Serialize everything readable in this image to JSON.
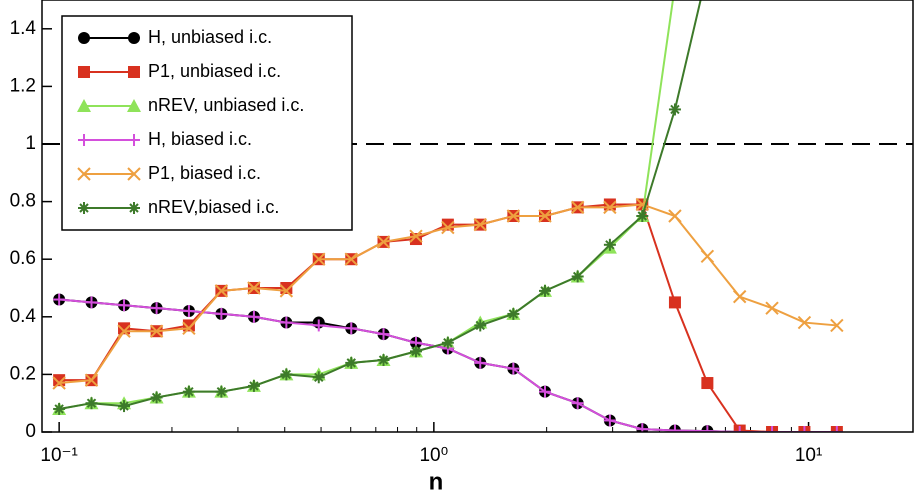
{
  "chart_data": {
    "type": "line",
    "xlabel": "n",
    "xscale": "log",
    "xlim": [
      0.09,
      19
    ],
    "ylim": [
      0,
      1.5
    ],
    "xticks": [
      {
        "value": 0.1,
        "label": "10⁻¹"
      },
      {
        "value": 1,
        "label": "10⁰"
      },
      {
        "value": 10,
        "label": "10¹"
      }
    ],
    "yticks": [
      0,
      0.2,
      0.4,
      0.6,
      0.8,
      1,
      1.2,
      1.4
    ],
    "reference_line": 1,
    "legend": "upper left",
    "x": [
      0.1,
      0.122,
      0.149,
      0.182,
      0.222,
      0.271,
      0.331,
      0.404,
      0.493,
      0.602,
      0.734,
      0.896,
      1.09,
      1.33,
      1.63,
      1.98,
      2.42,
      2.95,
      3.6,
      4.4,
      5.37,
      6.55,
      7.99,
      9.75,
      11.9
    ],
    "series": [
      {
        "name": "H, unbiased i.c.",
        "color": "#000000",
        "marker": "circle",
        "values": [
          0.46,
          0.45,
          0.44,
          0.43,
          0.42,
          0.41,
          0.4,
          0.38,
          0.38,
          0.36,
          0.34,
          0.31,
          0.29,
          0.24,
          0.22,
          0.14,
          0.1,
          0.04,
          0.01,
          0.005,
          0.003,
          0,
          0,
          0,
          0
        ]
      },
      {
        "name": "P1, unbiased i.c.",
        "color": "#d8311f",
        "marker": "square",
        "values": [
          0.18,
          0.18,
          0.36,
          0.35,
          0.37,
          0.49,
          0.5,
          0.5,
          0.6,
          0.6,
          0.66,
          0.67,
          0.72,
          0.72,
          0.75,
          0.75,
          0.78,
          0.79,
          0.79,
          0.45,
          0.17,
          0.005,
          0,
          0,
          0
        ]
      },
      {
        "name": "nREV, unbiased i.c.",
        "color": "#8fe35a",
        "marker": "triangle",
        "values": [
          0.08,
          0.1,
          0.1,
          0.12,
          0.14,
          0.14,
          0.16,
          0.2,
          0.2,
          0.24,
          0.25,
          0.28,
          0.31,
          0.38,
          0.41,
          0.49,
          0.54,
          0.64,
          0.75,
          1.55,
          null,
          null,
          null,
          null,
          null
        ]
      },
      {
        "name": "H, biased i.c.",
        "color": "#d44fdc",
        "marker": "plus",
        "values": [
          0.46,
          0.45,
          0.44,
          0.43,
          0.42,
          0.41,
          0.4,
          0.38,
          0.37,
          0.36,
          0.34,
          0.31,
          0.29,
          0.24,
          0.22,
          0.14,
          0.1,
          0.04,
          0.01,
          0.005,
          0.003,
          0,
          0,
          0,
          0
        ]
      },
      {
        "name": "P1, biased i.c.",
        "color": "#eea040",
        "marker": "x",
        "values": [
          0.17,
          0.18,
          0.35,
          0.35,
          0.36,
          0.49,
          0.5,
          0.49,
          0.6,
          0.6,
          0.66,
          0.68,
          0.71,
          0.72,
          0.75,
          0.75,
          0.78,
          0.78,
          0.79,
          0.75,
          0.61,
          0.47,
          0.43,
          0.38,
          0.37
        ]
      },
      {
        "name": "nREV,biased i.c.",
        "color": "#3d7a2a",
        "marker": "star",
        "values": [
          0.08,
          0.1,
          0.09,
          0.12,
          0.14,
          0.14,
          0.16,
          0.2,
          0.19,
          0.24,
          0.25,
          0.28,
          0.31,
          0.37,
          0.41,
          0.49,
          0.54,
          0.65,
          0.75,
          1.12,
          1.6,
          null,
          null,
          null,
          null
        ]
      }
    ]
  }
}
